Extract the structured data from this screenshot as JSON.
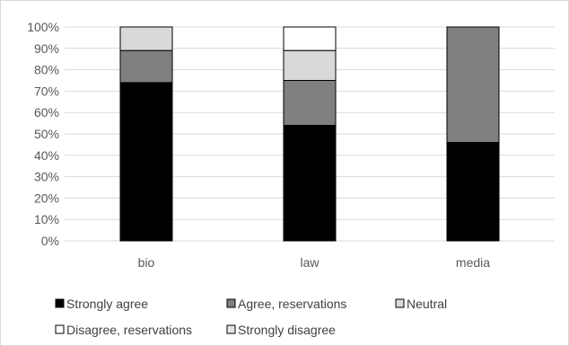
{
  "chart_data": {
    "type": "bar",
    "stacked": true,
    "percent": true,
    "categories": [
      "bio",
      "law",
      "media"
    ],
    "series": [
      {
        "name": "Strongly agree",
        "color": "#000000",
        "values": [
          74,
          54,
          46
        ]
      },
      {
        "name": "Agree, reservations",
        "color": "#7f7f7f",
        "values": [
          15,
          21,
          54
        ]
      },
      {
        "name": "Neutral",
        "color": "#d9d9d9",
        "values": [
          11,
          14,
          0
        ]
      },
      {
        "name": "Disagree, reservations",
        "color": "#ffffff",
        "values": [
          0,
          11,
          0
        ]
      },
      {
        "name": "Strongly disagree",
        "color": "#e7e6e6",
        "values": [
          0,
          0,
          0
        ]
      }
    ],
    "yticks": [
      "0%",
      "10%",
      "20%",
      "30%",
      "40%",
      "50%",
      "60%",
      "70%",
      "80%",
      "90%",
      "100%"
    ],
    "ylim": [
      0,
      100
    ],
    "grid": true,
    "legend_position": "bottom"
  }
}
